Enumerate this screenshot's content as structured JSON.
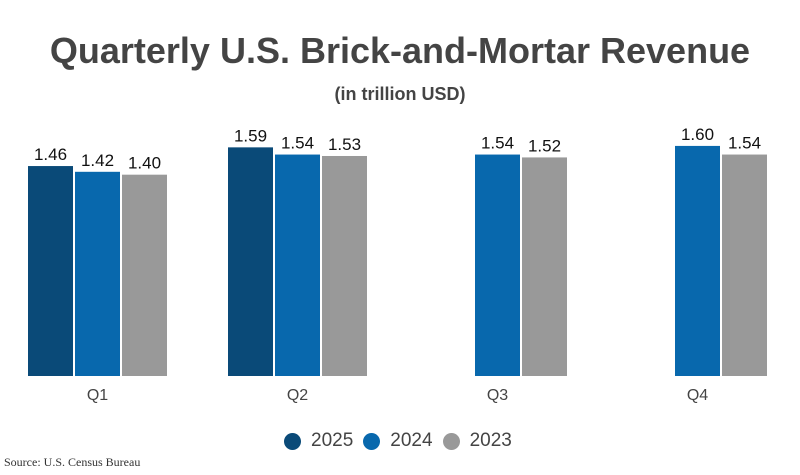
{
  "chart_data": {
    "type": "bar",
    "title": "Quarterly U.S. Brick-and-Mortar Revenue",
    "subtitle": "(in trillion USD)",
    "categories": [
      "Q1",
      "Q2",
      "Q3",
      "Q4"
    ],
    "series": [
      {
        "name": "2025",
        "color": "#0a4a78",
        "values": [
          1.46,
          1.59,
          null,
          null
        ]
      },
      {
        "name": "2024",
        "color": "#0868ad",
        "values": [
          1.42,
          1.54,
          1.54,
          1.6
        ]
      },
      {
        "name": "2023",
        "color": "#999999",
        "values": [
          1.4,
          1.53,
          1.52,
          1.54
        ]
      }
    ],
    "ylim": [
      0,
      1.6
    ],
    "grid": false,
    "legend_position": "bottom",
    "data_labels": true
  },
  "source": "Source: U.S. Census Bureau"
}
